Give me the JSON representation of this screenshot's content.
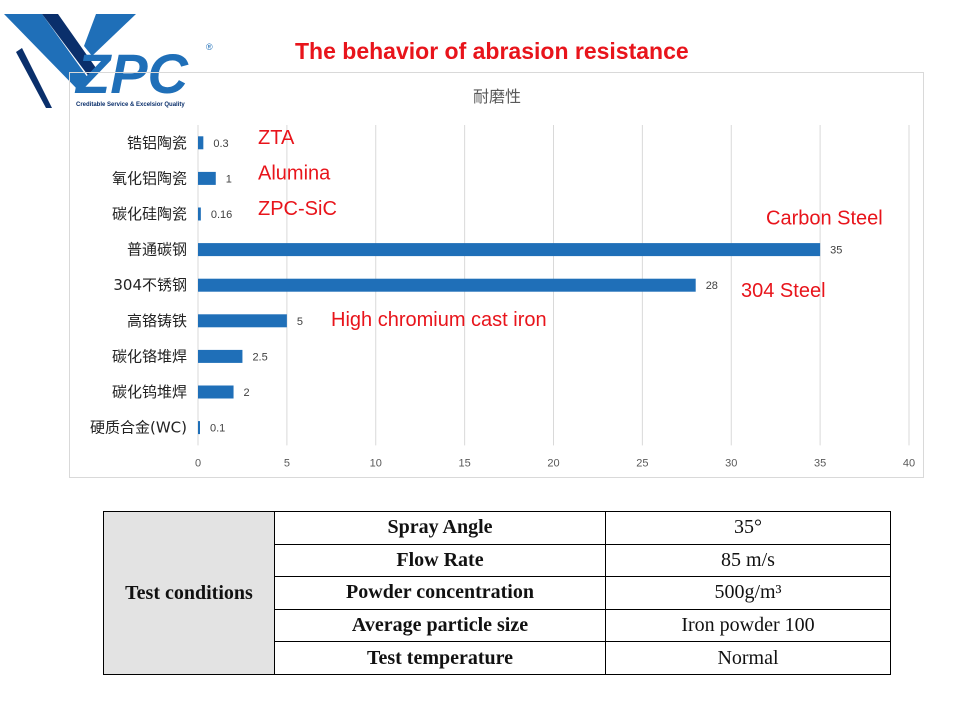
{
  "logo": {
    "text": "ZPC",
    "registered_mark": "®",
    "tagline": "Creditable Service & Excelsior Quality",
    "colors": {
      "blue": "#1f6fb8",
      "navy": "#0a2f6b"
    }
  },
  "slide_title": "The behavior of abrasion resistance",
  "chart_data": {
    "type": "bar",
    "orientation": "horizontal",
    "title": "耐磨性",
    "categories": [
      "锆铝陶瓷",
      "氧化铝陶瓷",
      "碳化硅陶瓷",
      "普通碳钢",
      "304不锈钢",
      "高铬铸铁",
      "碳化铬堆焊",
      "碳化钨堆焊",
      "硬质合金(WC)"
    ],
    "values": [
      0.3,
      1,
      0.16,
      35,
      28,
      5,
      2.5,
      2,
      0.1
    ],
    "value_labels": [
      "0.3",
      "1",
      "0.16",
      "35",
      "28",
      "5",
      "2.5",
      "2",
      "0.1"
    ],
    "xlim": [
      0,
      40
    ],
    "xticks": [
      "0",
      "5",
      "10",
      "15",
      "20",
      "25",
      "30",
      "35",
      "40"
    ],
    "xtick_values": [
      0,
      5,
      10,
      15,
      20,
      25,
      30,
      35,
      40
    ],
    "grid": "vertical",
    "bar_color": "#1f6fb8",
    "annotations": [
      {
        "text": "ZTA",
        "category": "锆铝陶瓷"
      },
      {
        "text": "Alumina",
        "category": "氧化铝陶瓷"
      },
      {
        "text": "ZPC-SiC",
        "category": "碳化硅陶瓷"
      },
      {
        "text": "Carbon Steel",
        "category": "普通碳钢"
      },
      {
        "text": "304 Steel",
        "category": "304不锈钢"
      },
      {
        "text": "High chromium cast iron",
        "category": "高铬铸铁"
      }
    ],
    "annotation_color": "#e8141b"
  },
  "test_conditions": {
    "header": "Test conditions",
    "rows": [
      {
        "param": "Spray Angle",
        "value": "35°"
      },
      {
        "param": "Flow Rate",
        "value": "85 m/s"
      },
      {
        "param": "Powder concentration",
        "value": "500g/m³"
      },
      {
        "param": "Average particle size",
        "value": "Iron powder 100"
      },
      {
        "param": "Test temperature",
        "value": "Normal"
      }
    ]
  }
}
